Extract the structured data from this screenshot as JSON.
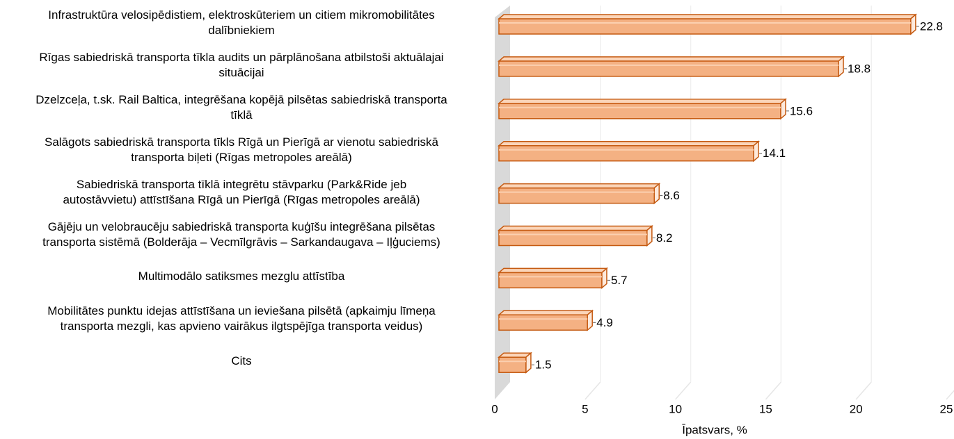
{
  "chart_data": {
    "type": "bar3d",
    "orientation": "horizontal",
    "categories": [
      "Infrastruktūra velosipēdistiem, elektroskūteriem un citiem mikromobilitātes\ndalībniekiem",
      "Rīgas sabiedriskā transporta tīkla audits un pārplānošana atbilstoši aktuālajai\nsituācijai",
      "Dzelzceļa, t.sk. Rail Baltica, integrēšana kopējā pilsētas sabiedriskā transporta\ntīklā",
      "Salāgots sabiedriskā transporta tīkls Rīgā un Pierīgā ar vienotu sabiedriskā\ntransporta biļeti (Rīgas metropoles areālā)",
      "Sabiedriskā transporta tīklā integrētu stāvparku (Park&Ride jeb\nautostāvvietu) attīstīšana Rīgā un Pierīgā (Rīgas metropoles areālā)",
      "Gājēju un velobraucēju sabiedriskā transporta kuģīšu integrēšana pilsētas\ntransporta sistēmā (Bolderāja – Vecmīlgrāvis – Sarkandaugava – Iļģuciems)",
      "Multimodālo satiksmes mezglu attīstība",
      "Mobilitātes punktu idejas attīstīšana un ieviešana pilsētā (apkaimju līmeņa\ntransporta mezgli, kas apvieno vairākus ilgtspējīga transporta veidus)",
      "Cits"
    ],
    "values": [
      22.8,
      18.8,
      15.6,
      14.1,
      8.6,
      8.2,
      5.7,
      4.9,
      1.5
    ],
    "color": "#f4b183",
    "edge_color": "#c55a11",
    "xlabel": "Īpatsvars, %",
    "xlim": [
      0,
      25
    ],
    "xticks": [
      0,
      5,
      10,
      15,
      20,
      25
    ],
    "grid": true
  }
}
